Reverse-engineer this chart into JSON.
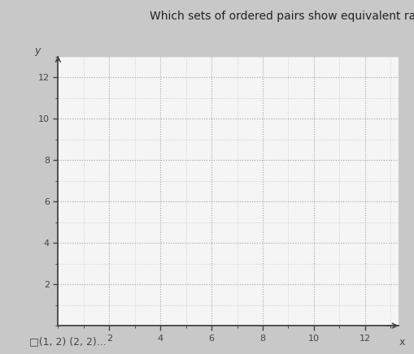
{
  "title": "Which sets of ordered pairs show equivalent ratios? use the grid to help you.",
  "title_fontsize": 10,
  "title_color": "#222222",
  "page_bg_color": "#c8c8c8",
  "left_strip_color": "#5a5a6a",
  "grid_bg_color": "#f5f5f5",
  "axis_color": "#444444",
  "grid_color_minor": "#bbbbbb",
  "grid_color_major": "#999999",
  "x_label": "x",
  "y_label": "y",
  "xlim": [
    0,
    13.3
  ],
  "ylim": [
    0,
    13.0
  ],
  "x_ticks_major": [
    2,
    4,
    6,
    8,
    10,
    12
  ],
  "y_ticks_major": [
    2,
    4,
    6,
    8,
    10,
    12
  ],
  "checkbox_text": "□(1, 2) (2, 2)...",
  "checkbox_fontsize": 9,
  "figure_width": 5.1,
  "figure_height": 4.36,
  "dpi": 100
}
